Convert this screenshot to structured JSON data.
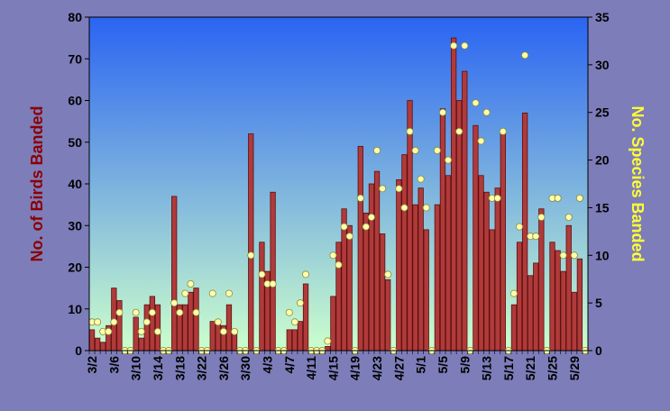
{
  "chart_data": {
    "type": "bar",
    "categories": [
      "3/2",
      "3/3",
      "3/4",
      "3/5",
      "3/6",
      "3/7",
      "3/8",
      "3/9",
      "3/10",
      "3/11",
      "3/12",
      "3/13",
      "3/14",
      "3/15",
      "3/16",
      "3/17",
      "3/18",
      "3/19",
      "3/20",
      "3/21",
      "3/22",
      "3/23",
      "3/24",
      "3/25",
      "3/26",
      "3/27",
      "3/28",
      "3/29",
      "3/30",
      "3/31",
      "4/1",
      "4/2",
      "4/3",
      "4/4",
      "4/5",
      "4/6",
      "4/7",
      "4/8",
      "4/9",
      "4/10",
      "4/11",
      "4/12",
      "4/13",
      "4/14",
      "4/15",
      "4/16",
      "4/17",
      "4/18",
      "4/19",
      "4/20",
      "4/21",
      "4/22",
      "4/23",
      "4/24",
      "4/25",
      "4/26",
      "4/27",
      "4/28",
      "4/29",
      "4/30",
      "5/1",
      "5/2",
      "5/3",
      "5/4",
      "5/5",
      "5/6",
      "5/7",
      "5/8",
      "5/9",
      "5/10",
      "5/11",
      "5/12",
      "5/13",
      "5/14",
      "5/15",
      "5/16",
      "5/17",
      "5/18",
      "5/19",
      "5/20",
      "5/21",
      "5/22",
      "5/23",
      "5/24",
      "5/25",
      "5/26",
      "5/27",
      "5/28",
      "5/29",
      "5/30",
      "5/31"
    ],
    "x_tick_labels": [
      "3/2",
      "3/6",
      "3/10",
      "3/14",
      "3/18",
      "3/22",
      "3/26",
      "3/30",
      "4/3",
      "4/7",
      "4/11",
      "4/15",
      "4/19",
      "4/23",
      "4/27",
      "5/1",
      "5/5",
      "5/9",
      "5/13",
      "5/17",
      "5/21",
      "5/25",
      "5/29"
    ],
    "series": [
      {
        "name": "No. of Birds Banded",
        "axis": "left",
        "render": "bar",
        "values": [
          5,
          3,
          2,
          6,
          15,
          12,
          0,
          0,
          8,
          3,
          11,
          13,
          11,
          0,
          0,
          37,
          11,
          11,
          14,
          15,
          0,
          0,
          7,
          7,
          6,
          11,
          5,
          0,
          0,
          52,
          0,
          26,
          19,
          38,
          0,
          0,
          5,
          5,
          7,
          16,
          0,
          0,
          0,
          1,
          13,
          26,
          34,
          30,
          0,
          49,
          33,
          40,
          43,
          28,
          17,
          0,
          41,
          47,
          60,
          35,
          39,
          29,
          0,
          35,
          58,
          42,
          75,
          60,
          67,
          0,
          54,
          42,
          38,
          29,
          39,
          53,
          0,
          11,
          26,
          57,
          18,
          21,
          34,
          0,
          26,
          24,
          19,
          30,
          14,
          22,
          0
        ]
      },
      {
        "name": "No. Species Banded",
        "axis": "right",
        "render": "marker",
        "values": [
          3,
          3,
          2,
          2,
          3,
          4,
          0,
          0,
          4,
          2,
          3,
          4,
          2,
          0,
          0,
          5,
          4,
          6,
          7,
          4,
          0,
          0,
          6,
          3,
          2,
          6,
          2,
          0,
          0,
          10,
          0,
          8,
          7,
          7,
          0,
          0,
          4,
          3,
          5,
          8,
          0,
          0,
          0,
          1,
          10,
          9,
          13,
          12,
          0,
          16,
          13,
          14,
          21,
          17,
          8,
          0,
          17,
          15,
          23,
          21,
          18,
          15,
          0,
          21,
          25,
          20,
          32,
          23,
          32,
          0,
          26,
          22,
          25,
          16,
          16,
          23,
          0,
          6,
          13,
          31,
          12,
          12,
          14,
          0,
          16,
          16,
          10,
          14,
          10,
          16,
          0
        ]
      }
    ],
    "ylabel_left": "No. of Birds Banded",
    "ylabel_right": "No. Species Banded",
    "ylim_left": [
      0,
      80
    ],
    "yticks_left": [
      0,
      10,
      20,
      30,
      40,
      50,
      60,
      70,
      80
    ],
    "ylim_right": [
      0,
      35
    ],
    "yticks_right": [
      0,
      5,
      10,
      15,
      20,
      25,
      30,
      35
    ],
    "grid": false,
    "legend": "none",
    "colors": {
      "bar_fill": "#b03a3a",
      "bar_stroke": "#5a0f0f",
      "marker_fill": "#ffffaa",
      "marker_stroke": "#8a8a40",
      "plot_gradient_top": "#2a64f2",
      "plot_gradient_bottom": "#ccffcc",
      "left_label": "#8b0000",
      "right_label": "#ffff33",
      "page_background": "#7d7dba"
    }
  }
}
